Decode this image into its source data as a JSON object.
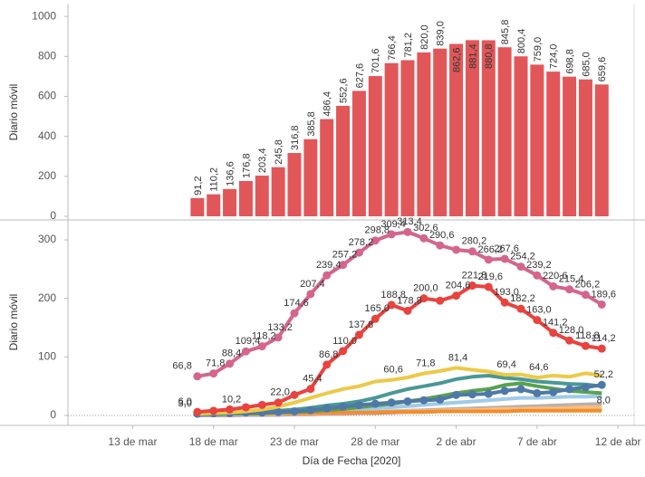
{
  "chart_data": [
    {
      "type": "bar",
      "y_label": "Diario móvil",
      "color": "#e15759",
      "x": [
        "2020-03-17",
        "2020-03-18",
        "2020-03-19",
        "2020-03-20",
        "2020-03-21",
        "2020-03-22",
        "2020-03-23",
        "2020-03-24",
        "2020-03-25",
        "2020-03-26",
        "2020-03-27",
        "2020-03-28",
        "2020-03-29",
        "2020-03-30",
        "2020-03-31",
        "2020-04-01",
        "2020-04-02",
        "2020-04-03",
        "2020-04-04",
        "2020-04-05",
        "2020-04-06",
        "2020-04-07",
        "2020-04-08",
        "2020-04-09",
        "2020-04-10",
        "2020-04-11"
      ],
      "values": [
        91.2,
        110.2,
        136.6,
        176.8,
        203.4,
        245.8,
        316.8,
        385.8,
        486.4,
        552.6,
        627.6,
        701.6,
        766.4,
        781.2,
        820.0,
        839.0,
        862.6,
        881.4,
        880.8,
        845.8,
        800.4,
        759.0,
        724.0,
        698.8,
        685.0,
        659.6
      ],
      "value_labels": [
        "91,2",
        "110,2",
        "136,6",
        "176,8",
        "203,4",
        "245,8",
        "316,8",
        "385,8",
        "486,4",
        "552,6",
        "627,6",
        "701,6",
        "766,4",
        "781,2",
        "820,0",
        "839,0",
        "862,6",
        "881,4",
        "880,8",
        "845,8",
        "800,4",
        "759,0",
        "724,0",
        "698,8",
        "685,0",
        "659,6"
      ],
      "xlim": [
        "2020-03-09",
        "2020-04-13"
      ],
      "ylim": [
        0,
        1046
      ],
      "yticks": [
        0,
        200,
        400,
        600,
        800,
        1000
      ]
    },
    {
      "type": "line",
      "y_label": "Diario móvil",
      "x_label": "Día de Fecha [2020]",
      "x": [
        "2020-03-17",
        "2020-03-18",
        "2020-03-19",
        "2020-03-20",
        "2020-03-21",
        "2020-03-22",
        "2020-03-23",
        "2020-03-24",
        "2020-03-25",
        "2020-03-26",
        "2020-03-27",
        "2020-03-28",
        "2020-03-29",
        "2020-03-30",
        "2020-03-31",
        "2020-04-01",
        "2020-04-02",
        "2020-04-03",
        "2020-04-04",
        "2020-04-05",
        "2020-04-06",
        "2020-04-07",
        "2020-04-08",
        "2020-04-09",
        "2020-04-10",
        "2020-04-11"
      ],
      "xlim": [
        "2020-03-09",
        "2020-04-13"
      ],
      "xticks": [
        {
          "value": "2020-03-13",
          "label": "13 de mar"
        },
        {
          "value": "2020-03-18",
          "label": "18 de mar"
        },
        {
          "value": "2020-03-23",
          "label": "23 de mar"
        },
        {
          "value": "2020-03-28",
          "label": "28 de mar"
        },
        {
          "value": "2020-04-02",
          "label": "2 de abr"
        },
        {
          "value": "2020-04-07",
          "label": "7 de abr"
        },
        {
          "value": "2020-04-12",
          "label": "12 de abr"
        }
      ],
      "ylim": [
        -17,
        334
      ],
      "yticks": [
        0,
        100,
        200,
        300
      ],
      "series": [
        {
          "color": "#bab0ac",
          "values": [
            0,
            0,
            1,
            1,
            1,
            2,
            2,
            3,
            3,
            4,
            5,
            6,
            7,
            8,
            9,
            10,
            11,
            12,
            13,
            14,
            15,
            16,
            17,
            18,
            19,
            20
          ]
        },
        {
          "color": "#b07aa1",
          "values": [
            0,
            0,
            0,
            1,
            1,
            1,
            2,
            2,
            3,
            3,
            4,
            4,
            5,
            6,
            6,
            7,
            8,
            8,
            9,
            9,
            10,
            10,
            11,
            11,
            12,
            12
          ]
        },
        {
          "color": "#ffbe7d",
          "values": [
            1,
            1,
            1,
            2,
            2,
            2,
            3,
            3,
            4,
            4,
            5,
            5,
            6,
            7,
            7,
            8,
            9,
            9,
            10,
            11,
            11,
            12,
            12,
            13,
            14,
            14
          ]
        },
        {
          "color": "#a0cbe8",
          "values": [
            1,
            1,
            2,
            2,
            3,
            3,
            4,
            5,
            6,
            8,
            10,
            12,
            14,
            16,
            18,
            20,
            22,
            24,
            26,
            28,
            30,
            30,
            31,
            32,
            32,
            33
          ]
        },
        {
          "color": "#f28e2b",
          "values": [
            3.0,
            3,
            3,
            3,
            3,
            4,
            4,
            4,
            5,
            5,
            5,
            5,
            6,
            6,
            6,
            7,
            7,
            7,
            7,
            7,
            8,
            8,
            8,
            8,
            8,
            8.0
          ],
          "value_labels": [
            "3,0",
            null,
            null,
            null,
            null,
            null,
            null,
            null,
            null,
            null,
            null,
            null,
            null,
            null,
            null,
            null,
            null,
            null,
            null,
            null,
            null,
            null,
            null,
            null,
            null,
            "8,0"
          ]
        },
        {
          "color": "#59a14f",
          "values": [
            2,
            2,
            3,
            3,
            4,
            5,
            6,
            7,
            9,
            11,
            14,
            17,
            20,
            24,
            28,
            33,
            38,
            42,
            45,
            52,
            55,
            50,
            46,
            42,
            40,
            38
          ]
        },
        {
          "color": "#499894",
          "values": [
            2,
            3,
            4,
            5,
            6,
            8,
            10,
            13,
            17,
            20,
            24,
            30,
            38,
            45,
            50,
            55,
            62,
            66,
            68,
            64,
            62,
            58,
            56,
            54,
            53,
            50
          ]
        },
        {
          "color": "#4e79a7",
          "markers": true,
          "values": [
            3,
            4,
            4,
            5,
            5,
            6,
            7,
            9,
            12,
            15,
            18,
            20,
            22,
            24,
            26,
            27,
            35,
            36,
            37,
            42,
            45,
            38,
            40,
            45,
            48,
            52.2
          ],
          "value_labels": [
            null,
            null,
            null,
            null,
            null,
            null,
            null,
            null,
            null,
            null,
            null,
            null,
            null,
            null,
            null,
            null,
            null,
            null,
            null,
            null,
            null,
            null,
            null,
            null,
            null,
            "52,2"
          ]
        },
        {
          "color": "#edc948",
          "values": [
            3,
            4,
            5,
            7,
            10,
            15,
            22,
            30,
            38,
            45,
            50,
            58,
            60.6,
            65,
            71.8,
            76,
            81.4,
            78,
            75,
            69.4,
            70,
            64.6,
            68,
            66,
            72,
            68
          ],
          "value_labels": [
            null,
            null,
            null,
            null,
            null,
            null,
            null,
            null,
            null,
            null,
            null,
            null,
            "60,6",
            null,
            "71,8",
            null,
            "81,4",
            null,
            null,
            "69,4",
            null,
            "64,6",
            null,
            null,
            null,
            null
          ]
        },
        {
          "color": "#e8433f",
          "markers": true,
          "values": [
            6.0,
            8,
            10.2,
            14,
            18,
            22.0,
            35,
            45.4,
            86.8,
            110.0,
            137.8,
            165.0,
            188.8,
            178.8,
            200.0,
            196,
            204.6,
            221.8,
            219.6,
            193.0,
            182.2,
            163.0,
            141.2,
            128.0,
            118.8,
            114.2
          ],
          "value_labels": [
            "6,0",
            null,
            "10,2",
            null,
            null,
            "22,0",
            null,
            "45,4",
            "86,8",
            "110,0",
            "137,8",
            "165,0",
            "188,8",
            "178,8",
            "200,0",
            null,
            "204,6",
            "221,8",
            "219,6",
            "193,0",
            "182,2",
            "163,0",
            "141,2",
            "128,0",
            "118,8",
            "114,2"
          ]
        },
        {
          "color": "#d4668a",
          "markers": true,
          "values": [
            66.8,
            71.8,
            88.4,
            109.4,
            118.2,
            133.2,
            174.6,
            207.4,
            239.4,
            257.2,
            278.2,
            298.8,
            309.4,
            313.4,
            302.6,
            290.6,
            283,
            280.2,
            266.2,
            267.6,
            254.2,
            239.2,
            220.6,
            215.4,
            206.2,
            189.6
          ],
          "value_labels": [
            "66,8",
            "71,8",
            "88,4",
            "109,4",
            "118,2",
            "133,2",
            "174,6",
            "207,4",
            "239,4",
            "257,2",
            "278,2",
            "298,8",
            "309,4",
            "313,4",
            "302,6",
            "290,6",
            null,
            "280,2",
            "266,2",
            "267,6",
            "254,2",
            "239,2",
            "220,6",
            "215,4",
            "206,2",
            "189,6"
          ]
        }
      ]
    }
  ]
}
